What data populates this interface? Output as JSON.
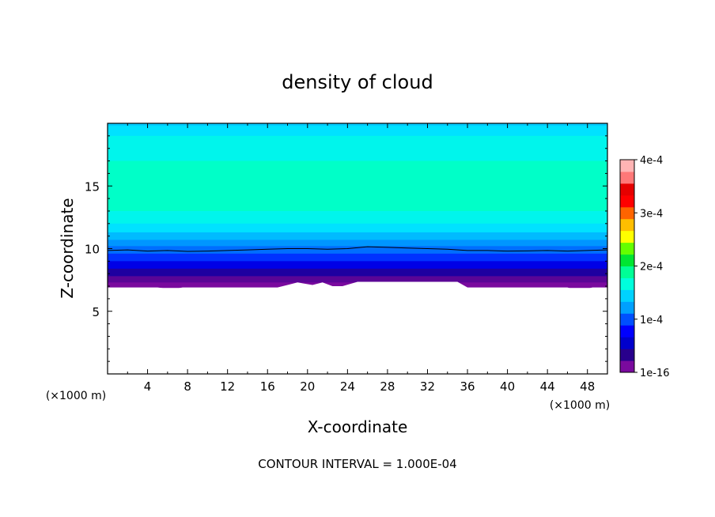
{
  "chart_data": {
    "type": "contour",
    "title": "density of cloud",
    "xlabel": "X-coordinate",
    "ylabel": "Z-coordinate",
    "x_unit": "(×1000 m)",
    "x_unit_right": "(×1000 m)",
    "xlim": [
      0,
      50
    ],
    "ylim": [
      0,
      20
    ],
    "x_ticks": [
      "4",
      "8",
      "12",
      "16",
      "20",
      "24",
      "28",
      "32",
      "36",
      "40",
      "44",
      "48"
    ],
    "y_ticks": [
      "5",
      "10",
      "15"
    ],
    "footer": "CONTOUR INTERVAL = 1.000E-04",
    "colorbar": {
      "min": 1e-16,
      "max": 0.0004,
      "labels": [
        "4e-4",
        "3e-4",
        "2e-4",
        "1e-4",
        "1e-16"
      ],
      "label_values": [
        0.0004,
        0.0003,
        0.0002,
        0.0001,
        0
      ],
      "colors": [
        "#7a0a9e",
        "#28008c",
        "#0000cc",
        "#0000ff",
        "#0050ff",
        "#00a0ff",
        "#00d2ff",
        "#00ffdc",
        "#00ff96",
        "#00e632",
        "#64ff00",
        "#ffff00",
        "#ffbe00",
        "#ff6400",
        "#ff0000",
        "#e60000",
        "#ff7878",
        "#ffb4b4"
      ]
    },
    "layers": [
      {
        "z_bottom": 19.8,
        "z_top": 20.0,
        "value": 0.00013,
        "color": "#00ccff"
      },
      {
        "z_bottom": 19.0,
        "z_top": 19.8,
        "value": 0.00014,
        "color": "#00e2ff"
      },
      {
        "z_bottom": 17.0,
        "z_top": 19.0,
        "value": 0.00015,
        "color": "#00f5ec"
      },
      {
        "z_bottom": 13.0,
        "z_top": 17.0,
        "value": 0.00016,
        "color": "#00ffc8"
      },
      {
        "z_bottom": 12.0,
        "z_top": 13.0,
        "value": 0.00015,
        "color": "#00f5ec"
      },
      {
        "z_bottom": 11.3,
        "z_top": 12.0,
        "value": 0.00014,
        "color": "#00e2ff"
      },
      {
        "z_bottom": 10.7,
        "z_top": 11.3,
        "value": 0.00012,
        "color": "#00bbff"
      },
      {
        "z_bottom": 10.2,
        "z_top": 10.7,
        "value": 0.0001,
        "color": "#0096ff"
      },
      {
        "z_bottom": 9.6,
        "z_top": 10.2,
        "value": 8e-05,
        "color": "#006eff"
      },
      {
        "z_bottom": 9.0,
        "z_top": 9.6,
        "value": 6e-05,
        "color": "#0032ff"
      },
      {
        "z_bottom": 8.4,
        "z_top": 9.0,
        "value": 4e-05,
        "color": "#0000e6"
      },
      {
        "z_bottom": 7.8,
        "z_top": 8.4,
        "value": 2e-05,
        "color": "#1e00a0"
      },
      {
        "z_bottom": 7.3,
        "z_top": 7.8,
        "value": 1e-05,
        "color": "#5a0596"
      },
      {
        "z_bottom": 6.9,
        "z_top": 7.3,
        "value": 1e-06,
        "color": "#7a0a9e"
      }
    ],
    "contour_line": {
      "label": "black contour near z = 10",
      "x": [
        0,
        2,
        4,
        6,
        8,
        10,
        12,
        14,
        16,
        18,
        20,
        22,
        24,
        26,
        28,
        30,
        32,
        34,
        36,
        38,
        40,
        42,
        44,
        46,
        48,
        50
      ],
      "z": [
        9.85,
        9.9,
        9.8,
        9.85,
        9.78,
        9.8,
        9.85,
        9.9,
        9.95,
        10.0,
        10.0,
        9.95,
        10.0,
        10.15,
        10.1,
        10.05,
        10.0,
        9.95,
        9.85,
        9.85,
        9.8,
        9.82,
        9.85,
        9.8,
        9.85,
        9.9
      ]
    },
    "cloud_base": {
      "x": [
        0,
        5,
        6.5,
        7.5,
        17,
        18,
        19,
        20.5,
        21.5,
        22.5,
        23.5,
        25,
        35,
        36,
        46,
        46.8,
        47.5,
        48.5,
        50
      ],
      "z": [
        6.9,
        6.9,
        6.75,
        6.9,
        6.9,
        7.1,
        7.3,
        7.1,
        7.3,
        7.0,
        7.0,
        7.35,
        7.35,
        6.9,
        6.9,
        6.7,
        6.7,
        6.9,
        6.9
      ]
    }
  }
}
